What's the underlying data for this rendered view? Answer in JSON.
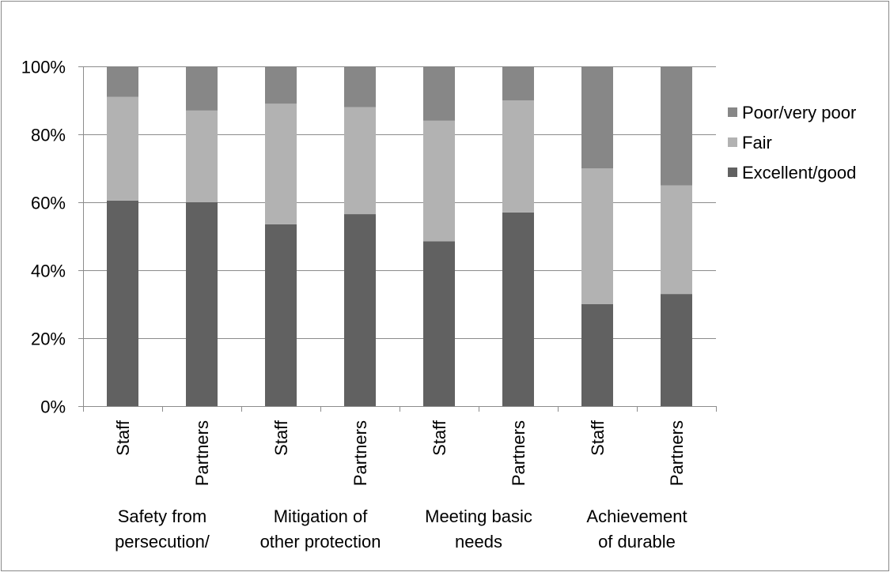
{
  "chart_data": {
    "type": "bar",
    "stacked": true,
    "percent": true,
    "subcategories": [
      "Staff",
      "Partners",
      "Staff",
      "Partners",
      "Staff",
      "Partners",
      "Staff",
      "Partners"
    ],
    "groups": [
      {
        "label_lines": [
          "Safety from",
          "persecution/"
        ]
      },
      {
        "label_lines": [
          "Mitigation of",
          "other protection"
        ]
      },
      {
        "label_lines": [
          "Meeting basic",
          "needs"
        ]
      },
      {
        "label_lines": [
          "Achievement",
          "of durable"
        ]
      }
    ],
    "series": [
      {
        "name": "Excellent/good",
        "color": "#616161",
        "values": [
          60.5,
          60,
          53.5,
          56.5,
          48.5,
          57,
          30,
          33
        ]
      },
      {
        "name": "Fair",
        "color": "#b2b2b2",
        "values": [
          30.5,
          27,
          35.5,
          31.5,
          35.5,
          33,
          40,
          32
        ]
      },
      {
        "name": "Poor/very poor",
        "color": "#878787",
        "values": [
          9,
          13,
          11,
          12,
          16,
          10,
          30,
          35
        ]
      }
    ],
    "legend_order": [
      "Poor/very poor",
      "Fair",
      "Excellent/good"
    ],
    "legend_position": "right",
    "ylim": [
      0,
      100
    ],
    "yticks": [
      "0%",
      "20%",
      "40%",
      "60%",
      "80%",
      "100%"
    ],
    "grid": true
  }
}
